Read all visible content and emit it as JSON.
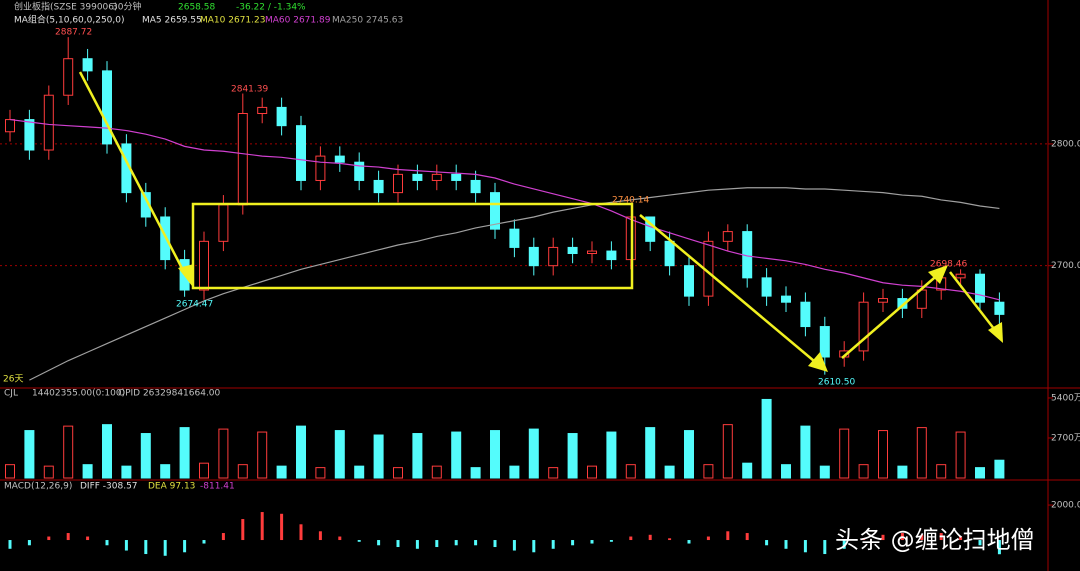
{
  "header": {
    "name": "创业板指(SZSE 399006)",
    "period": "30分钟",
    "price": "2658.58",
    "change": "-36.22 / -1.34%",
    "ma_group": "MA组合(5,10,60,0,250,0)",
    "ma5": "MA5 2659.55",
    "ma10": "MA10 2671.23",
    "ma60": "MA60 2671.89",
    "ma250": "MA250 2745.63",
    "days": "26天"
  },
  "annotations": [
    "2887.72",
    "2841.39",
    "2674.47",
    "2740.14",
    "2610.50",
    "2698.46"
  ],
  "watermark": "头条 @缠论扫地僧",
  "chart_data": [
    {
      "type": "candlestick",
      "up_color": "#ff3c3c",
      "down_color": "#54fcfc",
      "open": [
        2810,
        2820,
        2795,
        2840,
        2870,
        2860,
        2800,
        2760,
        2740,
        2705,
        2680,
        2720,
        2750,
        2825,
        2830,
        2815,
        2770,
        2790,
        2785,
        2770,
        2760,
        2775,
        2770,
        2775,
        2770,
        2760,
        2730,
        2715,
        2700,
        2715,
        2710,
        2712,
        2705,
        2740,
        2720,
        2700,
        2675,
        2720,
        2728,
        2690,
        2675,
        2670,
        2650,
        2625,
        2630,
        2670,
        2673,
        2665,
        2680,
        2690,
        2693,
        2670
      ],
      "close": [
        2820,
        2795,
        2840,
        2870,
        2860,
        2800,
        2760,
        2740,
        2705,
        2680,
        2720,
        2750,
        2825,
        2830,
        2815,
        2770,
        2790,
        2785,
        2770,
        2760,
        2775,
        2770,
        2775,
        2770,
        2760,
        2730,
        2715,
        2700,
        2715,
        2710,
        2712,
        2705,
        2740,
        2720,
        2700,
        2675,
        2720,
        2728,
        2690,
        2675,
        2670,
        2650,
        2625,
        2630,
        2670,
        2673,
        2665,
        2680,
        2690,
        2693,
        2670,
        2660
      ],
      "high": [
        2828,
        2828,
        2848,
        2887.72,
        2878,
        2868,
        2808,
        2768,
        2748,
        2713,
        2728,
        2758,
        2841.39,
        2838,
        2838,
        2823,
        2798,
        2798,
        2793,
        2778,
        2783,
        2783,
        2783,
        2783,
        2778,
        2768,
        2738,
        2723,
        2723,
        2723,
        2720,
        2720,
        2740.14,
        2740,
        2728,
        2708,
        2728,
        2734,
        2734,
        2698,
        2683,
        2678,
        2658,
        2638,
        2678,
        2681,
        2681,
        2688,
        2698.46,
        2697,
        2697,
        2678
      ],
      "low": [
        2802,
        2787,
        2787,
        2832,
        2852,
        2792,
        2752,
        2732,
        2697,
        2674.47,
        2672,
        2712,
        2742,
        2817,
        2807,
        2762,
        2762,
        2777,
        2762,
        2752,
        2752,
        2762,
        2762,
        2762,
        2752,
        2722,
        2707,
        2692,
        2692,
        2702,
        2702,
        2697,
        2697,
        2712,
        2692,
        2667,
        2667,
        2712,
        2682,
        2667,
        2662,
        2642,
        2610.5,
        2617,
        2622,
        2662,
        2657,
        2657,
        2672,
        2682,
        2662,
        2652
      ],
      "series": [
        {
          "name": "MA60",
          "color": "#d040d0",
          "values": [
            2820,
            2818,
            2816,
            2815,
            2814,
            2813,
            2811,
            2808,
            2804,
            2798,
            2795,
            2794,
            2792,
            2790,
            2789,
            2787,
            2785,
            2784,
            2782,
            2781,
            2779,
            2778,
            2777,
            2776,
            2775,
            2772,
            2767,
            2763,
            2759,
            2755,
            2751,
            2745,
            2738,
            2732,
            2727,
            2722,
            2717,
            2712,
            2708,
            2706,
            2704,
            2701,
            2697,
            2694,
            2690,
            2686,
            2684,
            2683,
            2681,
            2679,
            2676,
            2672
          ]
        },
        {
          "name": "MA250",
          "color": "#a0a0a0",
          "values": [
            null,
            2606,
            2614,
            2622,
            2629,
            2636,
            2643,
            2650,
            2657,
            2664,
            2671,
            2677,
            2682,
            2687,
            2692,
            2697,
            2701,
            2705,
            2709,
            2713,
            2717,
            2720,
            2724,
            2727,
            2731,
            2734,
            2737,
            2740,
            2744,
            2747,
            2750,
            2752,
            2754,
            2756,
            2758,
            2760,
            2762,
            2763,
            2764,
            2764,
            2764,
            2763,
            2763,
            2762,
            2761,
            2760,
            2758,
            2757,
            2754,
            2752,
            2749,
            2747
          ]
        }
      ],
      "ylim": [
        2602,
        2910
      ],
      "yticks": [
        {
          "value": 2800,
          "label": "2800.00"
        },
        {
          "value": 2700,
          "label": "2700.00"
        }
      ],
      "grid": true
    },
    {
      "type": "bar",
      "title": "CJL",
      "subtitle": "14402355.00(0:100)",
      "note": "OPID 26329841664.00",
      "values": [
        900,
        3200,
        800,
        3500,
        900,
        3600,
        800,
        3000,
        900,
        3400,
        1000,
        3300,
        900,
        3100,
        800,
        3500,
        700,
        3200,
        800,
        2900,
        700,
        3000,
        800,
        3100,
        700,
        3200,
        800,
        3300,
        700,
        3000,
        800,
        3100,
        900,
        3400,
        800,
        3200,
        900,
        3600,
        1000,
        5300,
        900,
        3500,
        800,
        3300,
        900,
        3200,
        800,
        3400,
        900,
        3100,
        700,
        1200
      ],
      "ylim": [
        0,
        5600
      ],
      "yticks": [
        {
          "value": 5400,
          "label": "5400万"
        },
        {
          "value": 2700,
          "label": "2700万"
        }
      ]
    },
    {
      "type": "bar",
      "title": "MACD(12,26,9)",
      "diff": "DIFF -308.57",
      "dea": "DEA 97.13",
      "macd": "-811.41",
      "values": [
        -500,
        -300,
        200,
        400,
        200,
        -300,
        -600,
        -800,
        -900,
        -700,
        -200,
        400,
        1200,
        1600,
        1500,
        900,
        500,
        200,
        -100,
        -300,
        -400,
        -500,
        -400,
        -300,
        -300,
        -400,
        -600,
        -700,
        -500,
        -300,
        -200,
        -100,
        200,
        300,
        100,
        -200,
        200,
        500,
        400,
        -300,
        -500,
        -700,
        -800,
        -500,
        100,
        300,
        400,
        300,
        400,
        200,
        -300,
        -811.41
      ],
      "ylim": [
        -1770,
        3260
      ],
      "yticks": [
        {
          "value": 2000,
          "label": "2000.00"
        }
      ]
    }
  ]
}
